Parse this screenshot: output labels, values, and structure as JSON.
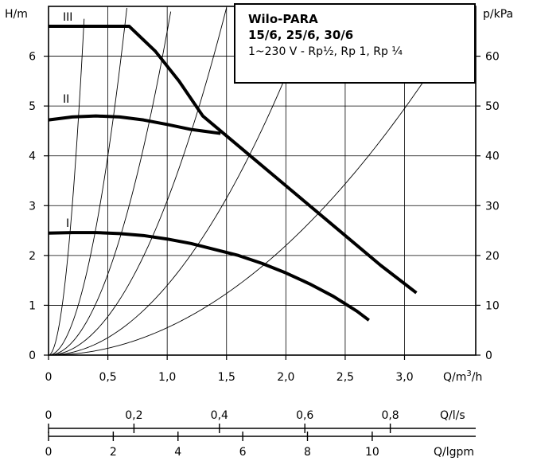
{
  "chart_data": {
    "type": "line",
    "legend": {
      "line1": "Wilo-PARA",
      "line2": "15/6, 25/6, 30/6",
      "line3": "1~230 V - Rp½, Rp 1, Rp ¼"
    },
    "left_axis": {
      "label": "H/m",
      "range": [
        0,
        7
      ],
      "ticks": [
        "0",
        "1",
        "2",
        "3",
        "4",
        "5",
        "6"
      ]
    },
    "right_axis": {
      "label": "p/kPa",
      "range": [
        0,
        70
      ],
      "ticks": [
        "0",
        "10",
        "20",
        "30",
        "40",
        "50",
        "60"
      ]
    },
    "x_axis_main": {
      "label": "Q/m³/h",
      "range": [
        0,
        3.6
      ],
      "ticks": [
        "0",
        "0,5",
        "1,0",
        "1,5",
        "2,0",
        "2,5",
        "3,0"
      ]
    },
    "x_axis_ls": {
      "label": "Q/l/s",
      "ticks": [
        "0",
        "0,2",
        "0,4",
        "0,6",
        "0,8"
      ],
      "values": [
        0,
        0.2,
        0.4,
        0.6,
        0.8
      ]
    },
    "x_axis_lpm": {
      "label": "Q/lgpm",
      "ticks": [
        "0",
        "2",
        "4",
        "6",
        "8",
        "10"
      ],
      "values": [
        0,
        2,
        4,
        6,
        8,
        10
      ]
    },
    "series": [
      {
        "name": "III",
        "x": [
          0,
          0.68,
          0.9,
          1.1,
          1.3,
          1.6,
          2.0,
          2.4,
          2.8,
          3.1
        ],
        "y": [
          6.6,
          6.6,
          6.1,
          5.5,
          4.8,
          4.2,
          3.4,
          2.6,
          1.8,
          1.25
        ]
      },
      {
        "name": "II",
        "x": [
          0,
          0.2,
          0.4,
          0.6,
          0.8,
          1.0,
          1.2,
          1.45
        ],
        "y": [
          4.72,
          4.78,
          4.8,
          4.78,
          4.72,
          4.63,
          4.53,
          4.45
        ]
      },
      {
        "name": "I",
        "x": [
          0,
          0.2,
          0.4,
          0.6,
          0.8,
          1.0,
          1.2,
          1.4,
          1.6,
          1.8,
          2.0,
          2.2,
          2.4,
          2.6,
          2.7
        ],
        "y": [
          2.45,
          2.46,
          2.46,
          2.44,
          2.4,
          2.33,
          2.24,
          2.12,
          2.0,
          1.84,
          1.65,
          1.43,
          1.18,
          0.88,
          0.7
        ]
      }
    ],
    "system_curves_k": [
      75,
      16,
      6.5,
      3.1,
      1.4,
      0.55
    ],
    "grid": true
  }
}
